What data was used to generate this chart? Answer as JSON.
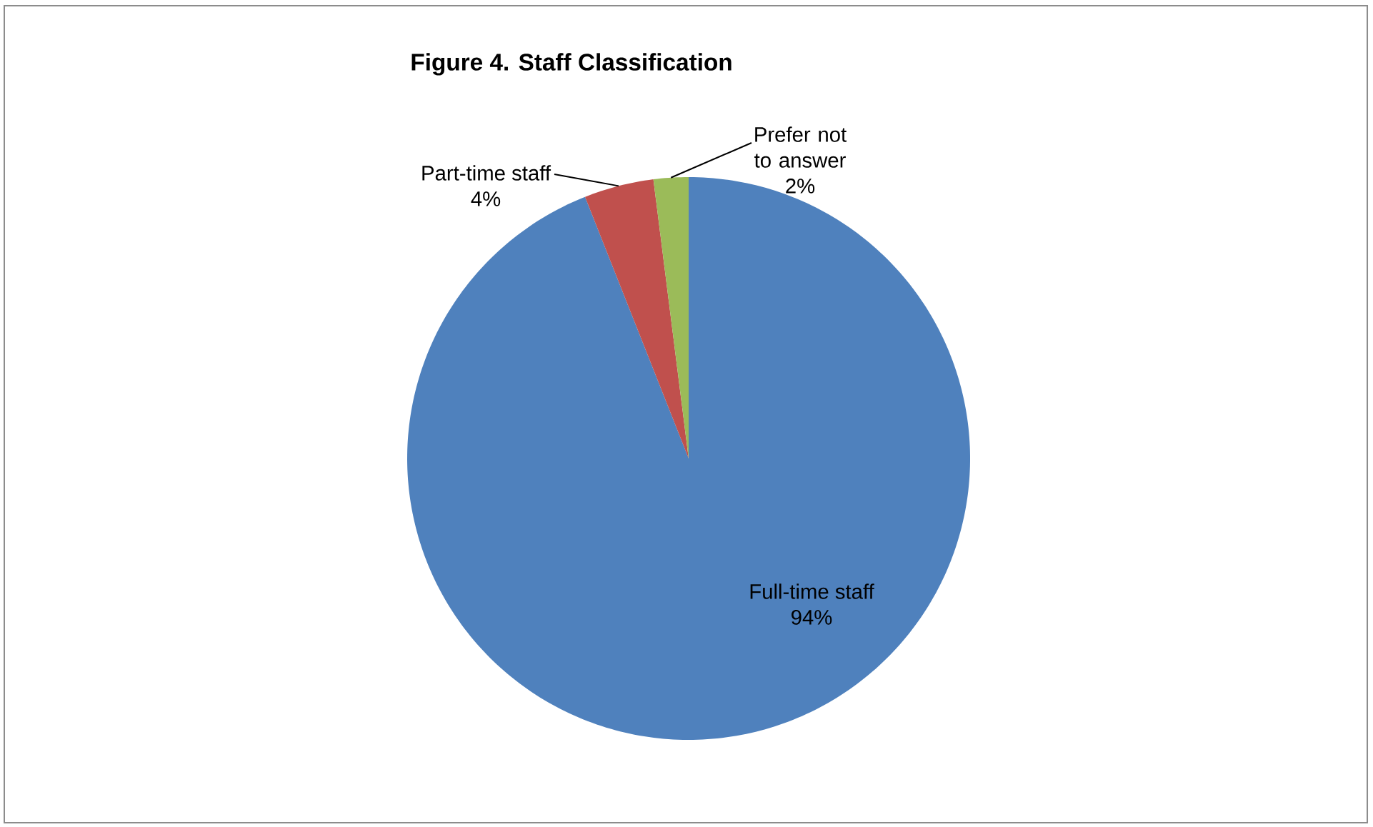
{
  "chart_data": {
    "type": "pie",
    "title": "Figure 4. Staff Classification",
    "categories": [
      "Full-time staff",
      "Part-time staff",
      "Prefer not to answer"
    ],
    "values": [
      94,
      4,
      2
    ],
    "colors": [
      "#4f81bd",
      "#c0504d",
      "#9bbb59"
    ],
    "value_labels": [
      "94%",
      "4%",
      "2%"
    ]
  }
}
